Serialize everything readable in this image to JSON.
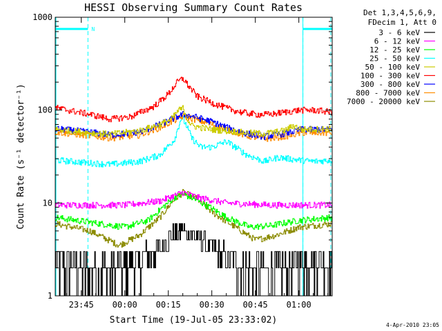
{
  "chart_data": {
    "type": "line",
    "title": "HESSI Observing Summary Count Rates",
    "xlabel": "Start Time (19-Jul-05 23:33:02)",
    "ylabel": "Count Rate (s⁻¹ detector⁻¹)",
    "y_scale": "log",
    "ylim": [
      1,
      1000
    ],
    "y_ticks": [
      {
        "value": 1,
        "label": "1"
      },
      {
        "value": 10,
        "label": "10"
      },
      {
        "value": 100,
        "label": "100"
      },
      {
        "value": 1000,
        "label": "1000"
      }
    ],
    "x_unit": "minutes",
    "xlim": [
      -23.97,
      71.5
    ],
    "x_ticks": [
      {
        "value": -15,
        "label": "23:45"
      },
      {
        "value": 0,
        "label": "00:00"
      },
      {
        "value": 15,
        "label": "00:15"
      },
      {
        "value": 30,
        "label": "00:30"
      },
      {
        "value": 45,
        "label": "00:45"
      },
      {
        "value": 60,
        "label": "01:00"
      }
    ],
    "legend_header": [
      "Det 1,3,4,5,6,9,",
      "FDecim 1, Att 0"
    ],
    "legend_position": "right",
    "night_flag": {
      "label": "N",
      "intervals": [
        [
          -23.97,
          -12.7
        ],
        [
          61.4,
          71.5
        ]
      ],
      "color": "#00ffff"
    },
    "series": [
      {
        "name": "3 - 6 keV",
        "color": "#000000",
        "noise": "step",
        "x": [
          -23.97,
          -12,
          -5,
          5,
          12,
          17,
          20,
          25,
          32,
          40,
          48,
          55,
          61,
          64,
          71.5
        ],
        "y": [
          2.2,
          1.8,
          1.9,
          2.3,
          3.3,
          4.7,
          5.2,
          4.3,
          2.9,
          2.0,
          1.8,
          2.0,
          2.3,
          2.4,
          2.2
        ]
      },
      {
        "name": "6 - 12 keV",
        "color": "#ff00ff",
        "noise": "fine",
        "x": [
          -23.97,
          0,
          12,
          17,
          20,
          25,
          35,
          50,
          71.5
        ],
        "y": [
          9.5,
          9.5,
          10.5,
          12,
          13,
          11.5,
          10,
          9.5,
          9.5
        ]
      },
      {
        "name": "12 - 25 keV",
        "color": "#00ff00",
        "noise": "fine",
        "x": [
          -23.97,
          -12,
          0,
          8,
          13,
          17,
          20,
          24,
          28,
          35,
          43,
          50,
          60,
          71.5
        ],
        "y": [
          7,
          6.2,
          5.5,
          6.5,
          9,
          11.5,
          12.5,
          11,
          9.5,
          7,
          5.5,
          5.7,
          6.5,
          7
        ]
      },
      {
        "name": "25 - 50 keV",
        "color": "#00ffff",
        "noise": "fine",
        "x": [
          -23.97,
          -12,
          -5,
          5,
          12,
          17,
          19.5,
          21,
          23,
          26,
          30,
          35,
          38,
          42,
          48,
          53,
          60,
          65,
          71.5
        ],
        "y": [
          29,
          27,
          26,
          28,
          33,
          48,
          85,
          70,
          50,
          40,
          40,
          46,
          40,
          33,
          28,
          31,
          29,
          28,
          29
        ]
      },
      {
        "name": "50 - 100 keV",
        "color": "#cccc00",
        "noise": "fine",
        "x": [
          -23.97,
          -12,
          -5,
          5,
          12,
          16,
          18.5,
          20,
          21.5,
          23,
          26,
          30,
          35,
          42,
          48,
          55,
          58,
          61,
          71.5
        ],
        "y": [
          62,
          57,
          55,
          60,
          70,
          80,
          100,
          105,
          80,
          68,
          65,
          62,
          60,
          57,
          56,
          60,
          68,
          62,
          63
        ]
      },
      {
        "name": "100 - 300 keV",
        "color": "#ff0000",
        "noise": "fine",
        "x": [
          -23.97,
          -12,
          -5,
          2,
          10,
          15,
          18,
          20,
          22,
          25,
          30,
          35,
          40,
          45,
          50,
          55,
          60,
          65,
          71.5
        ],
        "y": [
          106,
          90,
          80,
          85,
          110,
          150,
          200,
          220,
          180,
          140,
          120,
          105,
          95,
          90,
          90,
          95,
          100,
          100,
          95
        ]
      },
      {
        "name": "300 - 800 keV",
        "color": "#0000ff",
        "noise": "fine",
        "x": [
          -23.97,
          -12,
          -5,
          5,
          12,
          16,
          20,
          24,
          30,
          35,
          42,
          48,
          55,
          61,
          71.5
        ],
        "y": [
          63,
          58,
          54,
          58,
          70,
          80,
          90,
          85,
          75,
          65,
          56,
          52,
          56,
          62,
          62
        ]
      },
      {
        "name": "800 - 7000 keV",
        "color": "#ff8c00",
        "noise": "fine",
        "x": [
          -23.97,
          -12,
          -5,
          5,
          12,
          16,
          20,
          24,
          30,
          35,
          42,
          48,
          55,
          61,
          71.5
        ],
        "y": [
          58,
          53,
          50,
          54,
          65,
          75,
          86,
          80,
          70,
          62,
          53,
          49,
          52,
          57,
          57
        ]
      },
      {
        "name": "7000 - 20000 keV",
        "color": "#8b8b00",
        "noise": "fine",
        "x": [
          -23.97,
          -12,
          -2,
          5,
          12,
          17,
          20,
          25,
          30,
          38,
          45,
          52,
          60,
          71.5
        ],
        "y": [
          6,
          5,
          3.5,
          4.5,
          7,
          11,
          13,
          11,
          8,
          5.5,
          4,
          4.5,
          5.5,
          6
        ]
      }
    ]
  },
  "footer": {
    "timestamp": "4-Apr-2010 23:05"
  }
}
